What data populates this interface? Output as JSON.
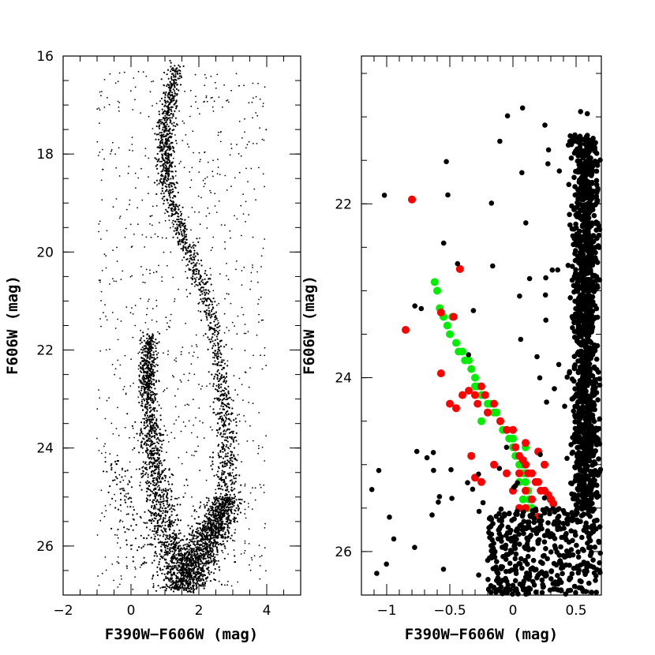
{
  "chart_data": [
    {
      "type": "scatter",
      "panel": "left",
      "title": "",
      "xlabel": "F390W−F606W (mag)",
      "ylabel": "F606W (mag)",
      "xlim": [
        -2,
        5
      ],
      "ylim": [
        27,
        16
      ],
      "y_inverted": true,
      "x_major_ticks": [
        -2,
        0,
        2,
        4
      ],
      "x_tick_labels": [
        "−2",
        "0",
        "2",
        "4"
      ],
      "y_major_ticks": [
        16,
        18,
        20,
        22,
        24,
        26
      ],
      "y_tick_labels": [
        "16",
        "18",
        "20",
        "22",
        "24",
        "26"
      ],
      "series": [
        {
          "color": "#000000",
          "marker": "dot",
          "description_sequences": [
            {
              "label": "red giant branch",
              "x": [
                1.3,
                1.2,
                1.05,
                1.0,
                1.0,
                1.05,
                1.2,
                1.5,
                1.85,
                2.2,
                2.5,
                2.65,
                2.75,
                2.8,
                2.8
              ],
              "y": [
                16.2,
                16.8,
                17.2,
                17.6,
                18.0,
                18.5,
                19.0,
                19.6,
                20.2,
                20.9,
                21.8,
                22.6,
                23.4,
                24.2,
                25.0
              ]
            },
            {
              "label": "main sequence",
              "x": [
                2.8,
                2.6,
                2.3,
                2.0,
                1.75,
                1.55
              ],
              "y": [
                25.0,
                25.4,
                25.8,
                26.2,
                26.5,
                26.9
              ]
            },
            {
              "label": "blue sequence",
              "x": [
                0.55,
                0.5,
                0.5,
                0.55,
                0.65,
                0.8,
                1.0,
                1.2,
                1.4,
                1.55
              ],
              "y": [
                21.7,
                22.2,
                22.8,
                23.5,
                24.2,
                24.9,
                25.5,
                26.0,
                26.4,
                26.9
              ]
            },
            {
              "label": "faint blue tail",
              "x": [
                -0.5,
                -0.3,
                -0.1,
                0.1,
                0.4
              ],
              "y": [
                24.3,
                24.7,
                25.2,
                25.8,
                26.5
              ]
            }
          ]
        }
      ]
    },
    {
      "type": "scatter",
      "panel": "right",
      "title": "",
      "xlabel": "F390W−F606W (mag)",
      "ylabel": "F606W (mag)",
      "xlim": [
        -1.2,
        0.7
      ],
      "ylim": [
        26.5,
        20.3
      ],
      "y_inverted": true,
      "x_major_ticks": [
        -1,
        -0.5,
        0,
        0.5
      ],
      "x_tick_labels": [
        "−1",
        "−0.5",
        "0",
        "0.5"
      ],
      "y_major_ticks": [
        22,
        24,
        26
      ],
      "y_tick_labels": [
        "22",
        "24",
        "26"
      ],
      "series": [
        {
          "color": "#00ee00",
          "marker": "circle",
          "x": [
            -0.62,
            -0.6,
            -0.58,
            -0.55,
            -0.52,
            -0.5,
            -0.48,
            -0.45,
            -0.43,
            -0.4,
            -0.38,
            -0.35,
            -0.33,
            -0.3,
            -0.3,
            -0.28,
            -0.25,
            -0.23,
            -0.2,
            -0.2,
            -0.18,
            -0.15,
            -0.13,
            -0.1,
            -0.08,
            -0.05,
            -0.03,
            0.0,
            0.0,
            0.02,
            0.05,
            0.07,
            0.08,
            0.1,
            0.1,
            0.12,
            0.13,
            0.15,
            0.12,
            0.08,
            0.05,
            0.1,
            -0.25
          ],
          "y": [
            22.9,
            23.0,
            23.2,
            23.3,
            23.4,
            23.5,
            23.3,
            23.6,
            23.7,
            23.7,
            23.8,
            23.8,
            23.9,
            24.0,
            24.1,
            24.1,
            24.2,
            24.2,
            24.3,
            24.4,
            24.3,
            24.4,
            24.4,
            24.5,
            24.6,
            24.6,
            24.7,
            24.7,
            24.8,
            24.9,
            25.0,
            25.0,
            25.1,
            25.1,
            25.2,
            25.3,
            25.4,
            25.5,
            25.5,
            25.4,
            25.2,
            24.8,
            24.5
          ]
        },
        {
          "color": "#ff0000",
          "marker": "circle",
          "x": [
            -0.8,
            -0.42,
            -0.85,
            -0.57,
            -0.57,
            -0.5,
            -0.47,
            -0.45,
            -0.4,
            -0.35,
            -0.33,
            -0.3,
            -0.28,
            -0.25,
            -0.22,
            -0.2,
            -0.15,
            -0.1,
            -0.05,
            0.0,
            0.02,
            0.05,
            0.08,
            0.1,
            0.12,
            0.15,
            0.18,
            0.2,
            0.22,
            0.25,
            0.28,
            0.3,
            0.32,
            0.05,
            0.1,
            0.15,
            0.2,
            0.25,
            0.0,
            -0.05,
            -0.15,
            -0.25,
            -0.3,
            0.1,
            0.2,
            0.3,
            0.1,
            0.05
          ],
          "y": [
            21.95,
            22.75,
            23.45,
            23.25,
            23.95,
            24.3,
            23.3,
            24.35,
            24.2,
            24.15,
            24.9,
            24.2,
            24.3,
            24.1,
            24.2,
            24.4,
            24.3,
            24.5,
            24.6,
            24.6,
            24.8,
            24.9,
            24.95,
            25.0,
            25.1,
            25.1,
            25.2,
            25.2,
            25.3,
            25.3,
            25.35,
            25.4,
            25.45,
            25.5,
            25.5,
            25.4,
            25.6,
            25.0,
            25.3,
            25.1,
            25.0,
            25.2,
            25.15,
            24.75,
            24.85,
            25.4,
            25.3,
            25.1
          ]
        },
        {
          "color": "#000000",
          "marker": "circle",
          "description_sequences": [
            {
              "label": "dense column",
              "x_range": [
                0.45,
                0.7
              ],
              "y_range": [
                21.2,
                25.5
              ]
            },
            {
              "label": "faint clump",
              "x_range": [
                -0.2,
                0.7
              ],
              "y_range": [
                25.5,
                26.5
              ]
            }
          ]
        }
      ]
    }
  ]
}
